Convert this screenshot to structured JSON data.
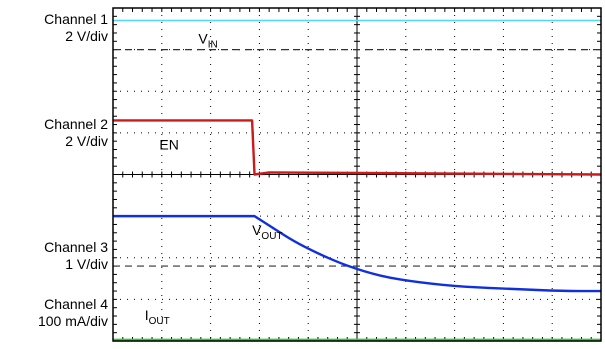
{
  "channels": [
    {
      "name": "Channel 1",
      "scale": "2 V/div"
    },
    {
      "name": "Channel 2",
      "scale": "2 V/div"
    },
    {
      "name": "Channel 3",
      "scale": "1 V/div"
    },
    {
      "name": "Channel 4",
      "scale": "100 mA/div"
    }
  ],
  "colors": {
    "vin": "#4fd8f0",
    "en": "#cc1a1a",
    "vout": "#1030e0",
    "iout": "#3cc43c",
    "grid": "#000000",
    "ref": "#333333"
  },
  "chart_data": {
    "type": "line",
    "title": "",
    "xlabel": "",
    "ylabel": "",
    "grid": true,
    "x_divisions": 10,
    "y_divisions": 8,
    "xlim": [
      0,
      10
    ],
    "ylim": [
      0,
      8
    ],
    "units": "divisions",
    "reference_levels": [
      {
        "channel": "Channel 1",
        "y": 7.0
      },
      {
        "channel": "Channel 3",
        "y": 1.8
      }
    ],
    "series": [
      {
        "name": "VIN",
        "label_main": "V",
        "label_sub": "IN",
        "color_key": "vin",
        "x": [
          0,
          10
        ],
        "y": [
          7.7,
          7.7
        ]
      },
      {
        "name": "EN",
        "label_main": "EN",
        "label_sub": "",
        "color_key": "en",
        "x": [
          0,
          2.85,
          2.9,
          3.2,
          10
        ],
        "y": [
          5.3,
          5.3,
          4.0,
          4.05,
          4.0
        ]
      },
      {
        "name": "VOUT",
        "label_main": "V",
        "label_sub": "OUT",
        "color_key": "vout",
        "x": [
          0,
          2.9,
          3.3,
          3.7,
          4.2,
          4.8,
          5.5,
          6.3,
          7.2,
          8.2,
          9.2,
          10
        ],
        "y": [
          3.0,
          3.0,
          2.7,
          2.4,
          2.1,
          1.8,
          1.55,
          1.4,
          1.3,
          1.25,
          1.2,
          1.2
        ]
      },
      {
        "name": "IOUT",
        "label_main": "I",
        "label_sub": "OUT",
        "color_key": "iout",
        "x": [
          0,
          10
        ],
        "y": [
          0.02,
          0.02
        ]
      }
    ]
  }
}
